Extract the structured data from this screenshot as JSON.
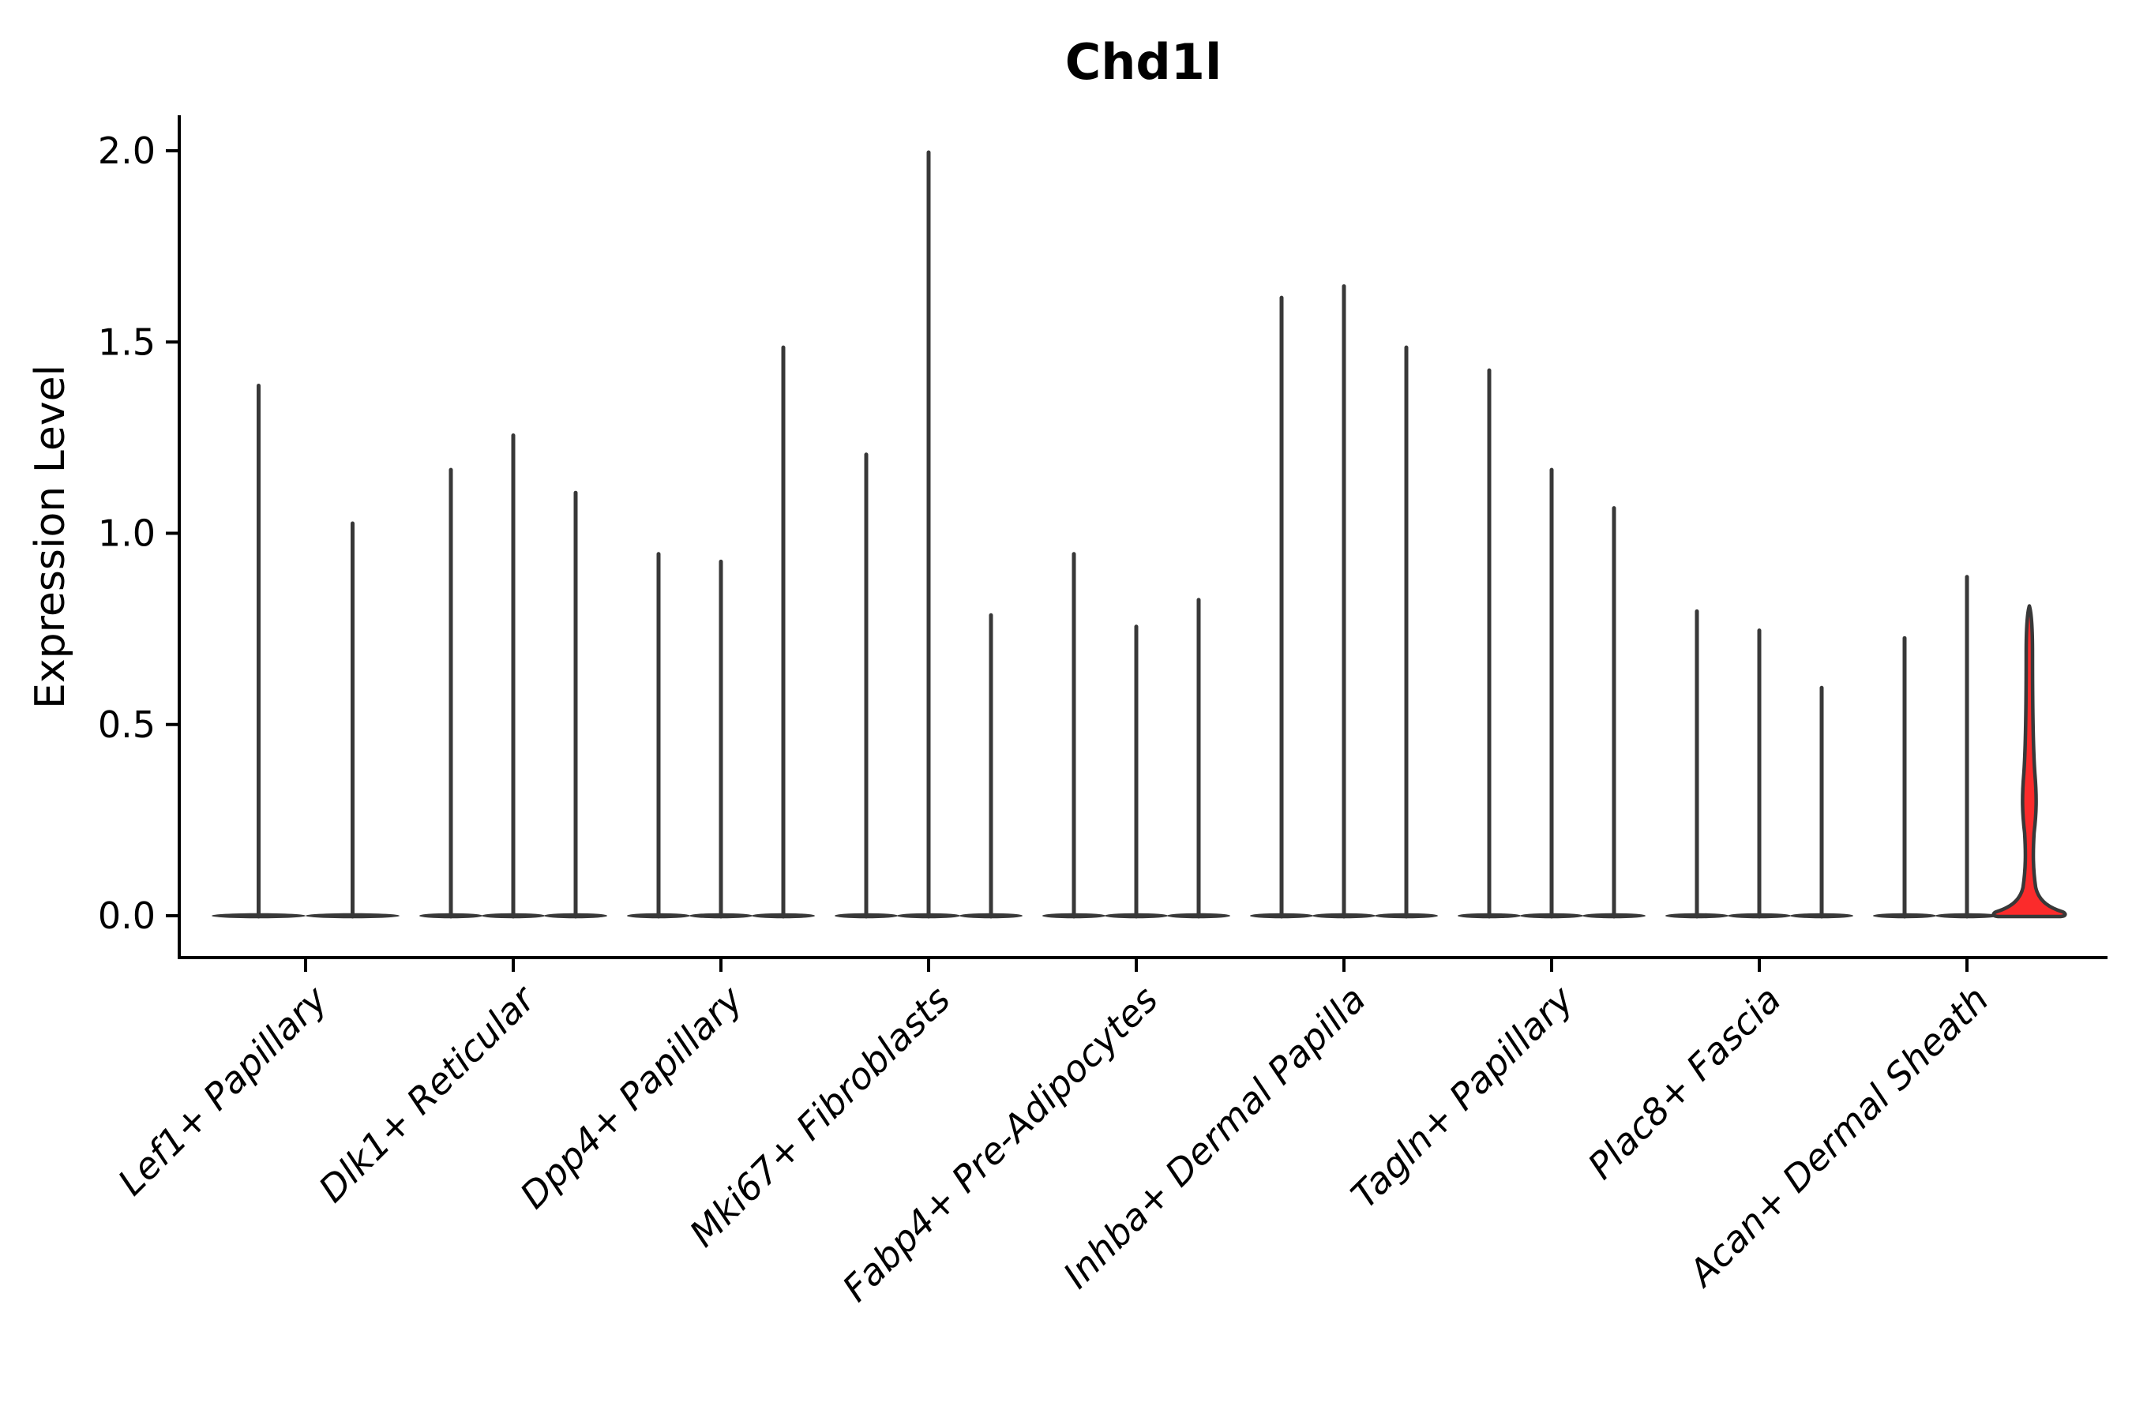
{
  "chart_data": {
    "type": "violin",
    "title": "Chd1l",
    "ylabel": "Expression Level",
    "xlabel": "",
    "ylim": [
      0.0,
      2.0
    ],
    "yticks": [
      0.0,
      0.5,
      1.0,
      1.5,
      2.0
    ],
    "ytick_labels": [
      "0.0",
      "0.5",
      "1.0",
      "1.5",
      "2.0"
    ],
    "grid": false,
    "legend": "none",
    "colors": {
      "violin_outline": "#383838",
      "highlight_fill": "#fb2b2b",
      "axis": "#000000",
      "text": "#000000",
      "background": "#ffffff"
    },
    "categories": [
      {
        "label": "Lef1+ Papillary",
        "violins": [
          {
            "max": 1.39
          },
          {
            "max": 1.03
          }
        ]
      },
      {
        "label": "Dlk1+ Reticular",
        "violins": [
          {
            "max": 1.17
          },
          {
            "max": 1.26
          },
          {
            "max": 1.11
          }
        ]
      },
      {
        "label": "Dpp4+ Papillary",
        "violins": [
          {
            "max": 0.95
          },
          {
            "max": 0.93
          },
          {
            "max": 1.49
          }
        ]
      },
      {
        "label": "Mki67+ Fibroblasts",
        "violins": [
          {
            "max": 1.21
          },
          {
            "max": 2.0
          },
          {
            "max": 0.79
          }
        ]
      },
      {
        "label": "Fabp4+ Pre-Adipocytes",
        "violins": [
          {
            "max": 0.95
          },
          {
            "max": 0.76
          },
          {
            "max": 0.83
          }
        ]
      },
      {
        "label": "Inhba+ Dermal Papilla",
        "violins": [
          {
            "max": 1.62
          },
          {
            "max": 1.65
          },
          {
            "max": 1.49
          }
        ]
      },
      {
        "label": "Tagln+ Papillary",
        "violins": [
          {
            "max": 1.43
          },
          {
            "max": 1.17
          },
          {
            "max": 1.07
          }
        ]
      },
      {
        "label": "Plac8+ Fascia",
        "violins": [
          {
            "max": 0.8
          },
          {
            "max": 0.75
          },
          {
            "max": 0.6
          }
        ]
      },
      {
        "label": "Acan+ Dermal Sheath",
        "violins": [
          {
            "max": 0.73
          },
          {
            "max": 0.89
          },
          {
            "max": 0.81,
            "highlight": true
          }
        ]
      }
    ]
  }
}
